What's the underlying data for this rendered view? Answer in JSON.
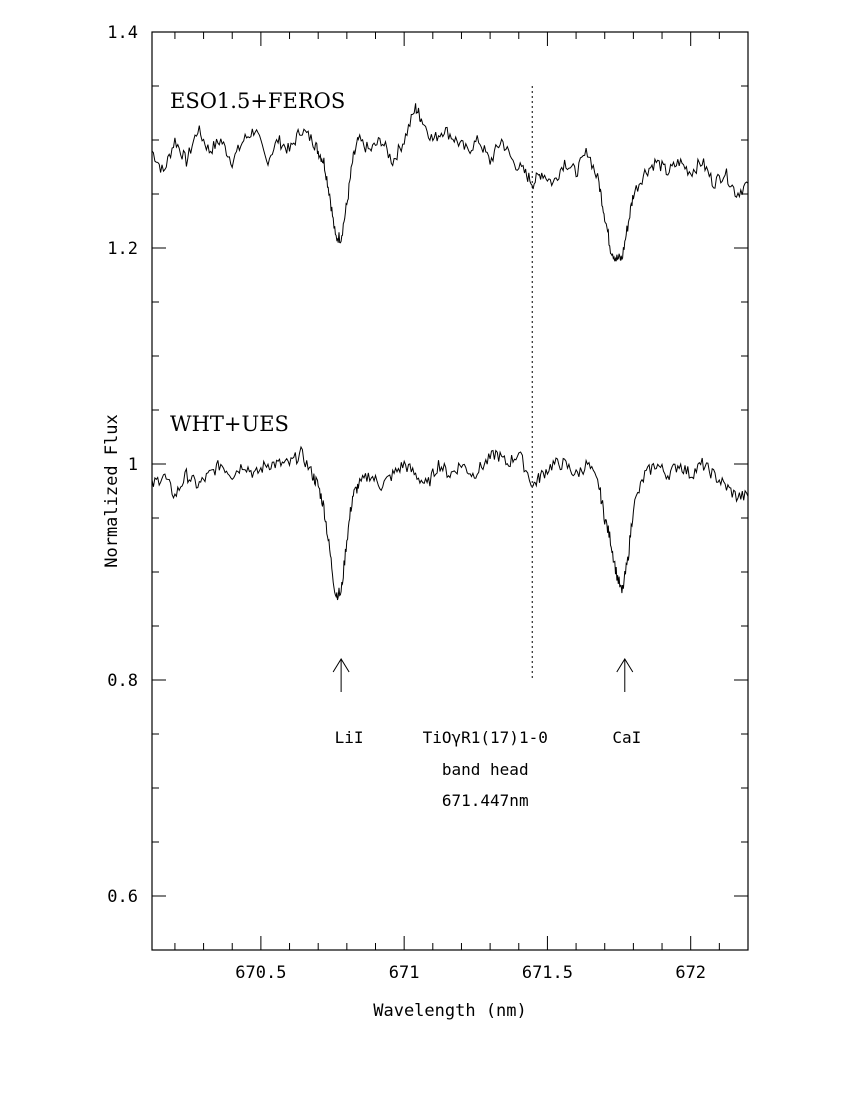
{
  "chart_data": {
    "type": "line",
    "xlabel": "Wavelength (nm)",
    "ylabel": "Normalized Flux",
    "xlim": [
      670.12,
      672.2
    ],
    "ylim": [
      0.55,
      1.4
    ],
    "x_ticks": [
      670.5,
      671,
      671.5,
      672
    ],
    "x_tick_labels": [
      "670.5",
      "671",
      "671.5",
      "672"
    ],
    "y_ticks": [
      0.6,
      0.8,
      1.0,
      1.2,
      1.4
    ],
    "y_tick_labels": [
      "0.6",
      "0.8",
      "1",
      "1.2",
      "1.4"
    ],
    "grid": false,
    "series": [
      {
        "name": "ESO1.5+FEROS",
        "x": [
          670.12,
          670.16,
          670.2,
          670.24,
          670.28,
          670.32,
          670.36,
          670.4,
          670.44,
          670.48,
          670.52,
          670.56,
          670.6,
          670.64,
          670.68,
          670.7,
          670.72,
          670.74,
          670.76,
          670.78,
          670.8,
          670.82,
          670.84,
          670.88,
          670.92,
          670.96,
          671.0,
          671.04,
          671.06,
          671.1,
          671.14,
          671.18,
          671.22,
          671.26,
          671.3,
          671.34,
          671.38,
          671.42,
          671.45,
          671.48,
          671.52,
          671.56,
          671.6,
          671.64,
          671.68,
          671.7,
          671.72,
          671.74,
          671.76,
          671.78,
          671.8,
          671.84,
          671.88,
          671.92,
          671.96,
          672.0,
          672.04,
          672.08,
          672.12,
          672.16,
          672.2
        ],
        "y": [
          1.29,
          1.27,
          1.3,
          1.28,
          1.31,
          1.29,
          1.3,
          1.28,
          1.3,
          1.31,
          1.28,
          1.3,
          1.29,
          1.31,
          1.3,
          1.29,
          1.28,
          1.25,
          1.21,
          1.21,
          1.24,
          1.28,
          1.3,
          1.29,
          1.3,
          1.28,
          1.3,
          1.33,
          1.32,
          1.3,
          1.31,
          1.3,
          1.29,
          1.3,
          1.28,
          1.3,
          1.28,
          1.27,
          1.26,
          1.27,
          1.26,
          1.28,
          1.27,
          1.29,
          1.26,
          1.23,
          1.2,
          1.19,
          1.19,
          1.22,
          1.25,
          1.27,
          1.28,
          1.27,
          1.28,
          1.27,
          1.28,
          1.26,
          1.27,
          1.25,
          1.26
        ]
      },
      {
        "name": "WHT+UES",
        "x": [
          670.12,
          670.16,
          670.2,
          670.24,
          670.28,
          670.32,
          670.36,
          670.4,
          670.44,
          670.48,
          670.52,
          670.56,
          670.6,
          670.64,
          670.68,
          670.7,
          670.72,
          670.74,
          670.76,
          670.78,
          670.8,
          670.82,
          670.84,
          670.88,
          670.92,
          670.96,
          671.0,
          671.04,
          671.08,
          671.12,
          671.16,
          671.2,
          671.24,
          671.28,
          671.32,
          671.36,
          671.4,
          671.45,
          671.48,
          671.52,
          671.56,
          671.6,
          671.64,
          671.68,
          671.7,
          671.72,
          671.74,
          671.76,
          671.78,
          671.8,
          671.84,
          671.88,
          671.92,
          671.96,
          672.0,
          672.04,
          672.08,
          672.12,
          672.16,
          672.2
        ],
        "y": [
          0.98,
          0.99,
          0.97,
          0.99,
          0.98,
          0.99,
          1.0,
          0.99,
          1.0,
          0.99,
          1.0,
          1.0,
          1.0,
          1.01,
          0.99,
          0.98,
          0.96,
          0.92,
          0.88,
          0.88,
          0.93,
          0.97,
          0.98,
          0.99,
          0.98,
          0.99,
          1.0,
          0.99,
          0.98,
          1.0,
          0.99,
          1.0,
          0.99,
          1.0,
          1.01,
          1.0,
          1.01,
          0.98,
          0.99,
          1.0,
          1.0,
          0.99,
          1.0,
          0.98,
          0.95,
          0.93,
          0.9,
          0.88,
          0.91,
          0.96,
          0.99,
          1.0,
          0.99,
          1.0,
          0.99,
          1.0,
          0.99,
          0.98,
          0.97,
          0.97
        ]
      }
    ],
    "series_labels": [
      "ESO1.5+FEROS",
      "WHT+UES"
    ],
    "vertical_line": {
      "x": 671.447,
      "y_from": 0.8,
      "y_to": 1.35,
      "style": "dotted"
    },
    "annotations": {
      "li": {
        "text": "LiI",
        "x": 670.78
      },
      "ca": {
        "text": "CaI",
        "x": 671.77
      },
      "tio_line1": "TiOγR1(17)1-0",
      "tio_line2": "band head",
      "tio_line3": "671.447nm"
    }
  }
}
